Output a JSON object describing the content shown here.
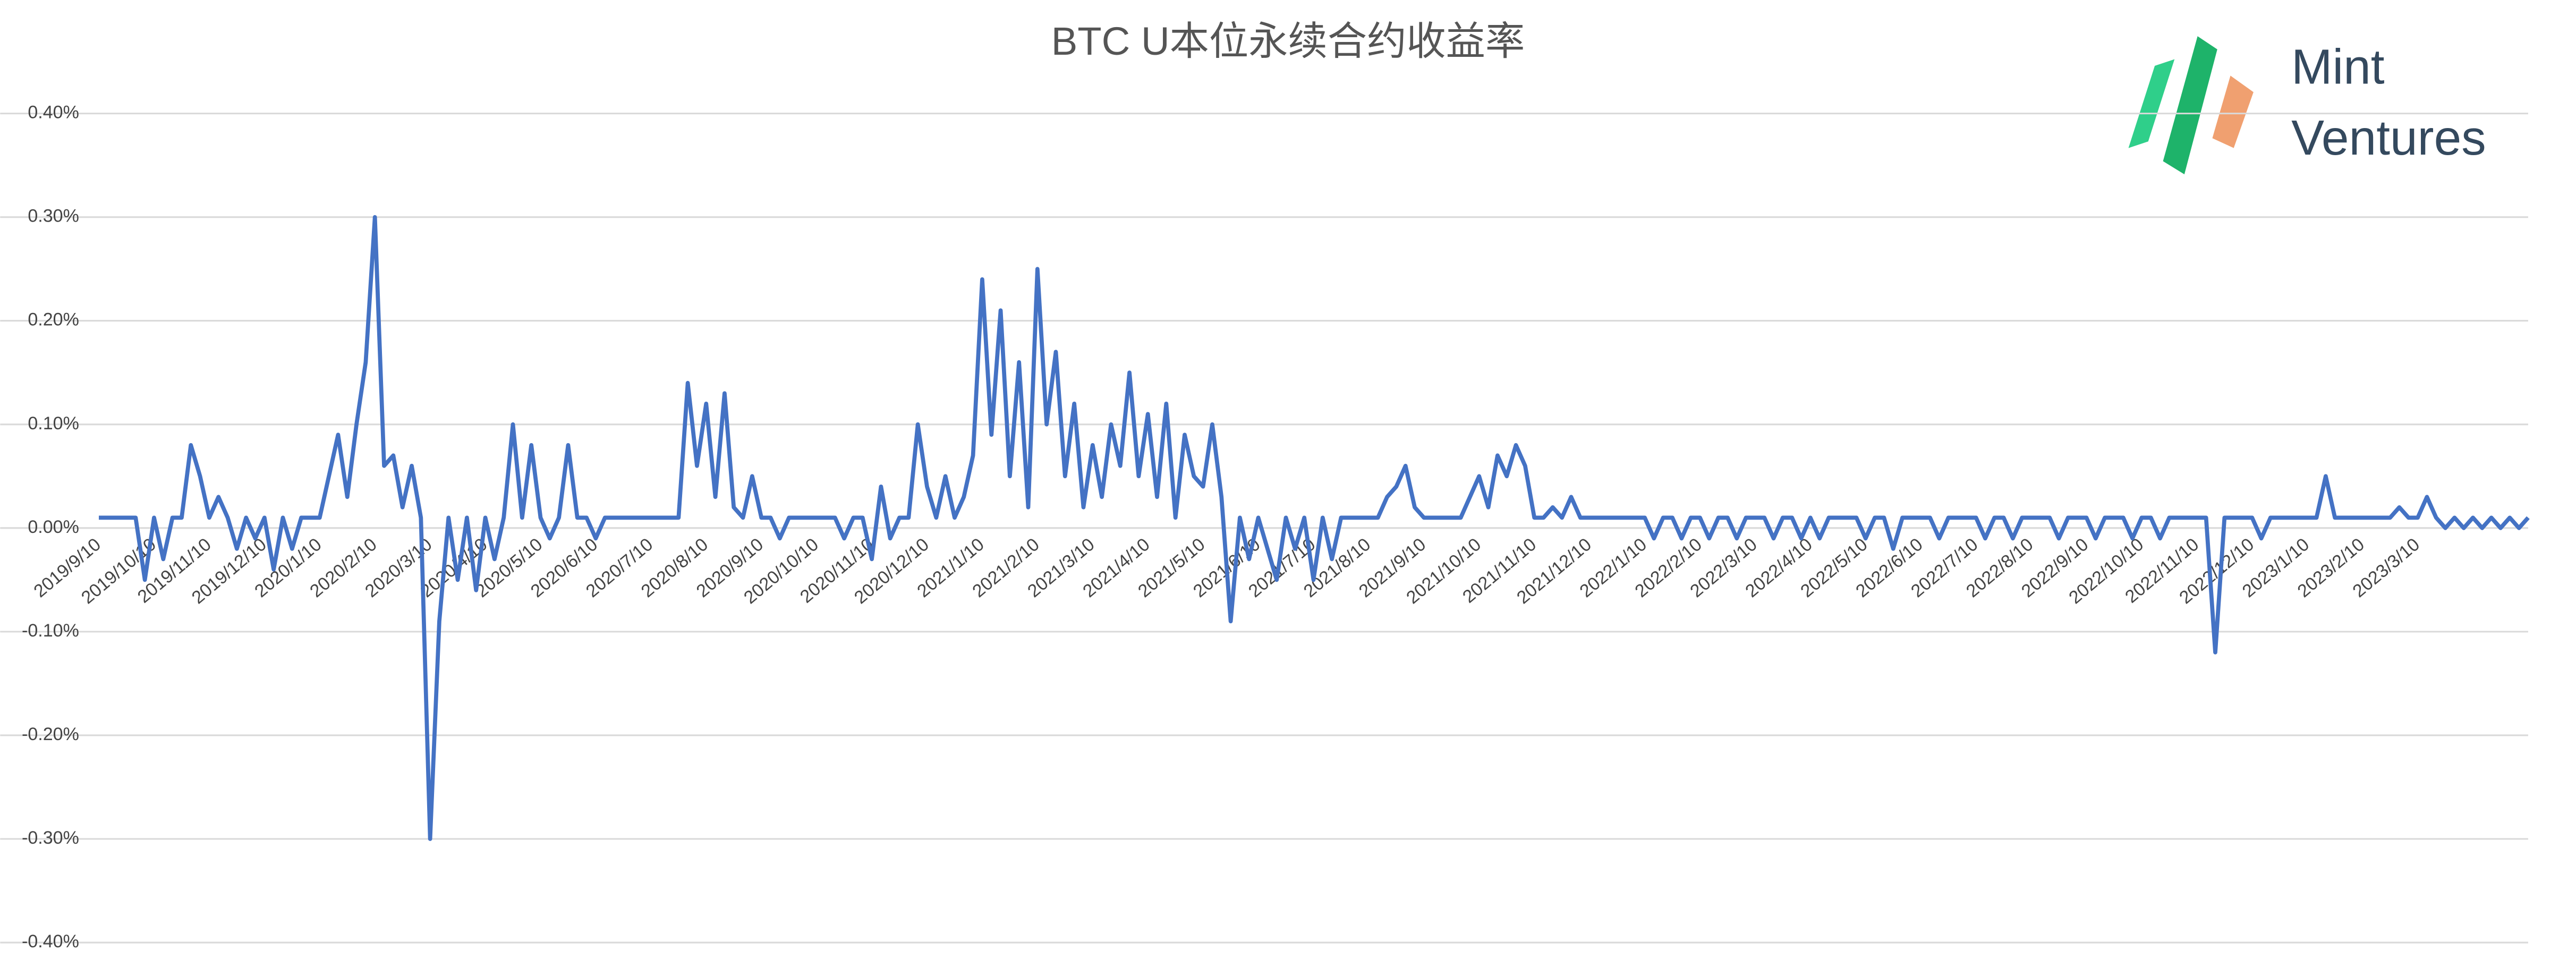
{
  "chart_data": {
    "type": "line",
    "title": "BTC U本位永续合约收益率",
    "color": "#4472c4",
    "grid": true,
    "ylim": [
      -0.4,
      0.4
    ],
    "yticks": [
      {
        "value": 0.4,
        "label": "0.40%"
      },
      {
        "value": 0.3,
        "label": "0.30%"
      },
      {
        "value": 0.2,
        "label": "0.20%"
      },
      {
        "value": 0.1,
        "label": "0.10%"
      },
      {
        "value": 0,
        "label": "0.00%"
      },
      {
        "value": -0.1,
        "label": "-0.10%"
      },
      {
        "value": -0.2,
        "label": "-0.20%"
      },
      {
        "value": -0.3,
        "label": "-0.30%"
      },
      {
        "value": -0.4,
        "label": "-0.40%"
      }
    ],
    "categories": [
      "2019/9/10",
      null,
      null,
      null,
      null,
      null,
      "2019/10/10",
      null,
      null,
      null,
      null,
      null,
      "2019/11/10",
      null,
      null,
      null,
      null,
      null,
      "2019/12/10",
      null,
      null,
      null,
      null,
      null,
      "2020/1/10",
      null,
      null,
      null,
      null,
      null,
      "2020/2/10",
      null,
      null,
      null,
      null,
      null,
      "2020/3/10",
      null,
      null,
      null,
      null,
      null,
      "2020/4/10",
      null,
      null,
      null,
      null,
      null,
      "2020/5/10",
      null,
      null,
      null,
      null,
      null,
      "2020/6/10",
      null,
      null,
      null,
      null,
      null,
      "2020/7/10",
      null,
      null,
      null,
      null,
      null,
      "2020/8/10",
      null,
      null,
      null,
      null,
      null,
      "2020/9/10",
      null,
      null,
      null,
      null,
      null,
      "2020/10/10",
      null,
      null,
      null,
      null,
      null,
      "2020/11/10",
      null,
      null,
      null,
      null,
      null,
      "2020/12/10",
      null,
      null,
      null,
      null,
      null,
      "2021/1/10",
      null,
      null,
      null,
      null,
      null,
      "2021/2/10",
      null,
      null,
      null,
      null,
      null,
      "2021/3/10",
      null,
      null,
      null,
      null,
      null,
      "2021/4/10",
      null,
      null,
      null,
      null,
      null,
      "2021/5/10",
      null,
      null,
      null,
      null,
      null,
      "2021/6/10",
      null,
      null,
      null,
      null,
      null,
      "2021/7/10",
      null,
      null,
      null,
      null,
      null,
      "2021/8/10",
      null,
      null,
      null,
      null,
      null,
      "2021/9/10",
      null,
      null,
      null,
      null,
      null,
      "2021/10/10",
      null,
      null,
      null,
      null,
      null,
      "2021/11/10",
      null,
      null,
      null,
      null,
      null,
      "2021/12/10",
      null,
      null,
      null,
      null,
      null,
      "2022/1/10",
      null,
      null,
      null,
      null,
      null,
      "2022/2/10",
      null,
      null,
      null,
      null,
      null,
      "2022/3/10",
      null,
      null,
      null,
      null,
      null,
      "2022/4/10",
      null,
      null,
      null,
      null,
      null,
      "2022/5/10",
      null,
      null,
      null,
      null,
      null,
      "2022/6/10",
      null,
      null,
      null,
      null,
      null,
      "2022/7/10",
      null,
      null,
      null,
      null,
      null,
      "2022/8/10",
      null,
      null,
      null,
      null,
      null,
      "2022/9/10",
      null,
      null,
      null,
      null,
      null,
      "2022/10/10",
      null,
      null,
      null,
      null,
      null,
      "2022/11/10",
      null,
      null,
      null,
      null,
      null,
      "2022/12/10",
      null,
      null,
      null,
      null,
      null,
      "2023/1/10",
      null,
      null,
      null,
      null,
      null,
      "2023/2/10",
      null,
      null,
      null,
      null,
      null,
      "2023/3/10",
      null,
      null,
      null,
      null,
      null,
      null,
      null,
      null,
      null,
      null,
      null,
      null
    ],
    "values": [
      0.01,
      0.01,
      0.01,
      0.01,
      0.01,
      -0.05,
      0.01,
      -0.03,
      0.01,
      0.01,
      0.08,
      0.05,
      0.01,
      0.03,
      0.01,
      -0.02,
      0.01,
      -0.01,
      0.01,
      -0.04,
      0.01,
      -0.02,
      0.01,
      0.01,
      0.01,
      0.05,
      0.09,
      0.03,
      0.1,
      0.16,
      0.3,
      0.06,
      0.07,
      0.02,
      0.06,
      0.01,
      -0.3,
      -0.09,
      0.01,
      -0.05,
      0.01,
      -0.06,
      0.01,
      -0.03,
      0.01,
      0.1,
      0.01,
      0.08,
      0.01,
      -0.01,
      0.01,
      0.08,
      0.01,
      0.01,
      -0.01,
      0.01,
      0.01,
      0.01,
      0.01,
      0.01,
      0.01,
      0.01,
      0.01,
      0.01,
      0.14,
      0.06,
      0.12,
      0.03,
      0.13,
      0.02,
      0.01,
      0.05,
      0.01,
      0.01,
      -0.01,
      0.01,
      0.01,
      0.01,
      0.01,
      0.01,
      0.01,
      -0.01,
      0.01,
      0.01,
      -0.03,
      0.04,
      -0.01,
      0.01,
      0.01,
      0.1,
      0.04,
      0.01,
      0.05,
      0.01,
      0.03,
      0.07,
      0.24,
      0.09,
      0.21,
      0.05,
      0.16,
      0.02,
      0.25,
      0.1,
      0.17,
      0.05,
      0.12,
      0.02,
      0.08,
      0.03,
      0.1,
      0.06,
      0.15,
      0.05,
      0.11,
      0.03,
      0.12,
      0.01,
      0.09,
      0.05,
      0.04,
      0.1,
      0.03,
      -0.09,
      0.01,
      -0.03,
      0.01,
      -0.02,
      -0.05,
      0.01,
      -0.02,
      0.01,
      -0.05,
      0.01,
      -0.03,
      0.01,
      0.01,
      0.01,
      0.01,
      0.01,
      0.03,
      0.04,
      0.06,
      0.02,
      0.01,
      0.01,
      0.01,
      0.01,
      0.01,
      0.03,
      0.05,
      0.02,
      0.07,
      0.05,
      0.08,
      0.06,
      0.01,
      0.01,
      0.02,
      0.01,
      0.03,
      0.01,
      0.01,
      0.01,
      0.01,
      0.01,
      0.01,
      0.01,
      0.01,
      -0.01,
      0.01,
      0.01,
      -0.01,
      0.01,
      0.01,
      -0.01,
      0.01,
      0.01,
      -0.01,
      0.01,
      0.01,
      0.01,
      -0.01,
      0.01,
      0.01,
      -0.01,
      0.01,
      -0.01,
      0.01,
      0.01,
      0.01,
      0.01,
      -0.01,
      0.01,
      0.01,
      -0.02,
      0.01,
      0.01,
      0.01,
      0.01,
      -0.01,
      0.01,
      0.01,
      0.01,
      0.01,
      -0.01,
      0.01,
      0.01,
      -0.01,
      0.01,
      0.01,
      0.01,
      0.01,
      -0.01,
      0.01,
      0.01,
      0.01,
      -0.01,
      0.01,
      0.01,
      0.01,
      -0.01,
      0.01,
      0.01,
      -0.01,
      0.01,
      0.01,
      0.01,
      0.01,
      0.01,
      -0.12,
      0.01,
      0.01,
      0.01,
      0.01,
      -0.01,
      0.01,
      0.01,
      0.01,
      0.01,
      0.01,
      0.01,
      0.05,
      0.01,
      0.01,
      0.01,
      0.01,
      0.01,
      0.01,
      0.01,
      0.02,
      0.01,
      0.01,
      0.03,
      0.01,
      0,
      0.01,
      0,
      0.01,
      0,
      0.01,
      0,
      0.01,
      0,
      0.01
    ]
  },
  "logo": {
    "line1": "Mint",
    "line2": "Ventures"
  }
}
